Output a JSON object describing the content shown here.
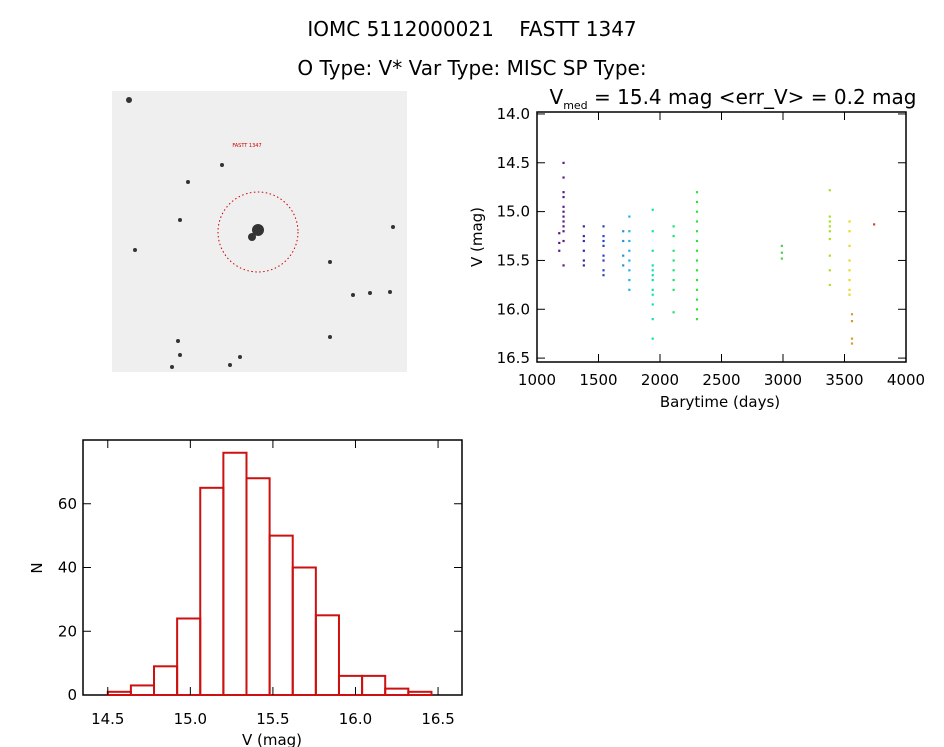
{
  "header": {
    "title": "IOMC 5112000021    FASTT 1347",
    "subtitle": "O Type: V*  Var Type: MISC  SP Type:"
  },
  "image_panel": {
    "label": "FASTT 1347",
    "marker_color": "#cc0000"
  },
  "chart_data": [
    {
      "type": "scatter",
      "title_main": "V",
      "title_sub": "med",
      "title_rest": " = 15.4 mag <err_V> = 0.2 mag",
      "xlabel": "Barytime (days)",
      "ylabel": "V (mag)",
      "xlim": [
        1000,
        4000
      ],
      "ylim": [
        16.54,
        13.98
      ],
      "y_inverted": true,
      "xticks": [
        1000,
        1500,
        2000,
        2500,
        3000,
        3500,
        4000
      ],
      "yticks": [
        "14.0",
        "14.5",
        "15.0",
        "15.5",
        "16.0",
        "16.5"
      ],
      "grid": false,
      "clusters": [
        {
          "x": 1180,
          "color": "#5a1a8a",
          "y": [
            15.22,
            15.32,
            15.4
          ]
        },
        {
          "x": 1215,
          "color": "#5a1a8a",
          "y": [
            14.5,
            14.65,
            14.8,
            14.85,
            14.95,
            15.0,
            15.05,
            15.1,
            15.15,
            15.2,
            15.3,
            15.55
          ]
        },
        {
          "x": 1380,
          "color": "#3a2aa0",
          "y": [
            15.15,
            15.25,
            15.3,
            15.4,
            15.5,
            15.55
          ]
        },
        {
          "x": 1540,
          "color": "#2a44c4",
          "y": [
            15.15,
            15.25,
            15.3,
            15.35,
            15.45,
            15.5,
            15.6,
            15.65
          ]
        },
        {
          "x": 1700,
          "color": "#2890d8",
          "y": [
            15.2,
            15.3,
            15.45,
            15.55
          ]
        },
        {
          "x": 1750,
          "color": "#20b0e8",
          "y": [
            15.05,
            15.2,
            15.3,
            15.4,
            15.5,
            15.6,
            15.7,
            15.8
          ]
        },
        {
          "x": 1940,
          "color": "#10e0b0",
          "y": [
            14.98,
            15.2,
            15.4,
            15.55,
            15.6,
            15.65,
            15.7,
            15.8,
            15.85,
            15.95,
            16.1,
            16.3
          ]
        },
        {
          "x": 2110,
          "color": "#20e070",
          "y": [
            15.15,
            15.25,
            15.4,
            15.5,
            15.6,
            15.7,
            15.8,
            16.03
          ]
        },
        {
          "x": 2300,
          "color": "#30e040",
          "y": [
            14.8,
            14.9,
            15.0,
            15.1,
            15.2,
            15.3,
            15.4,
            15.5,
            15.6,
            15.7,
            15.8,
            15.9,
            16.0,
            16.1
          ]
        },
        {
          "x": 2990,
          "color": "#50d050",
          "y": [
            15.35,
            15.42,
            15.48
          ]
        },
        {
          "x": 3380,
          "color": "#a8e020",
          "y": [
            14.78,
            15.05,
            15.1,
            15.15,
            15.2,
            15.28,
            15.45,
            15.6,
            15.75
          ]
        },
        {
          "x": 3540,
          "color": "#e8d820",
          "y": [
            15.1,
            15.2,
            15.35,
            15.5,
            15.6,
            15.7,
            15.8,
            15.85
          ]
        },
        {
          "x": 3560,
          "color": "#d89a30",
          "y": [
            16.05,
            16.12,
            16.3,
            16.35
          ]
        },
        {
          "x": 3740,
          "color": "#e04020",
          "y": [
            15.13
          ]
        }
      ]
    },
    {
      "type": "bar",
      "subtype": "histogram",
      "xlabel": "V (mag)",
      "ylabel": "N",
      "xlim": [
        14.35,
        16.645
      ],
      "ylim": [
        0,
        80
      ],
      "xticks": [
        "14.5",
        "15.0",
        "15.5",
        "16.0",
        "16.5"
      ],
      "yticks": [
        "0",
        "20",
        "40",
        "60"
      ],
      "bin_edges": [
        14.5,
        14.64,
        14.78,
        14.92,
        15.06,
        15.2,
        15.34,
        15.48,
        15.62,
        15.76,
        15.9,
        16.04,
        16.18,
        16.32,
        16.46
      ],
      "values": [
        1,
        3,
        9,
        24,
        65,
        76,
        68,
        50,
        40,
        25,
        6,
        6,
        2,
        1
      ],
      "color": "#cc1111",
      "grid": false
    }
  ]
}
